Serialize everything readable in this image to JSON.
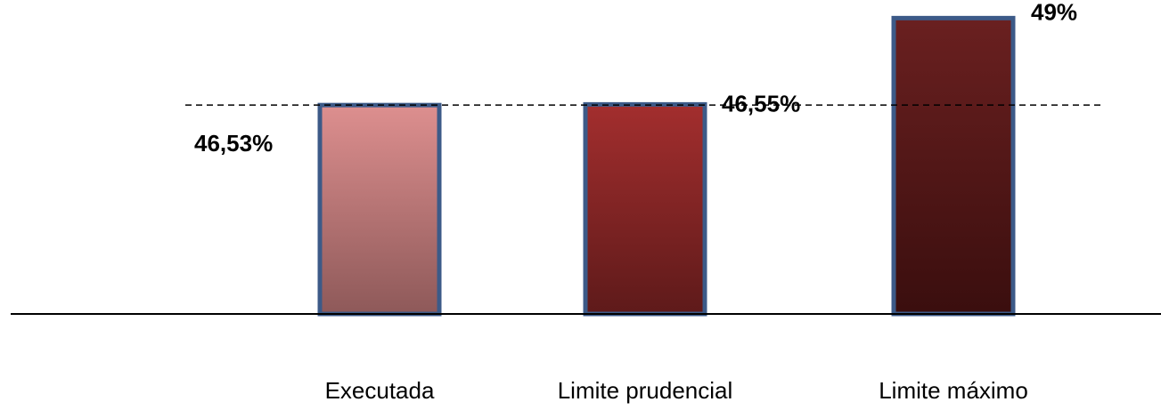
{
  "chart_data": {
    "type": "bar",
    "title": "",
    "xlabel": "",
    "ylabel": "",
    "categories": [
      "Executada",
      "Limite prudencial",
      "Limite máximo"
    ],
    "values": [
      46.53,
      46.55,
      49
    ],
    "data_labels": [
      "46,53%",
      "46,55%",
      "49%"
    ],
    "reference_line": {
      "value": 46.53,
      "style": "dashed"
    },
    "grid": false,
    "legend": "none",
    "colors": {
      "bar_gradients": [
        [
          "#dd8f8f",
          "#8e5959"
        ],
        [
          "#a32e2e",
          "#5e1a1a"
        ],
        [
          "#6a2020",
          "#3a0e0e"
        ]
      ],
      "bar_border": "#3c5a88",
      "axis": "#000000",
      "reference_line": "#000000"
    }
  }
}
